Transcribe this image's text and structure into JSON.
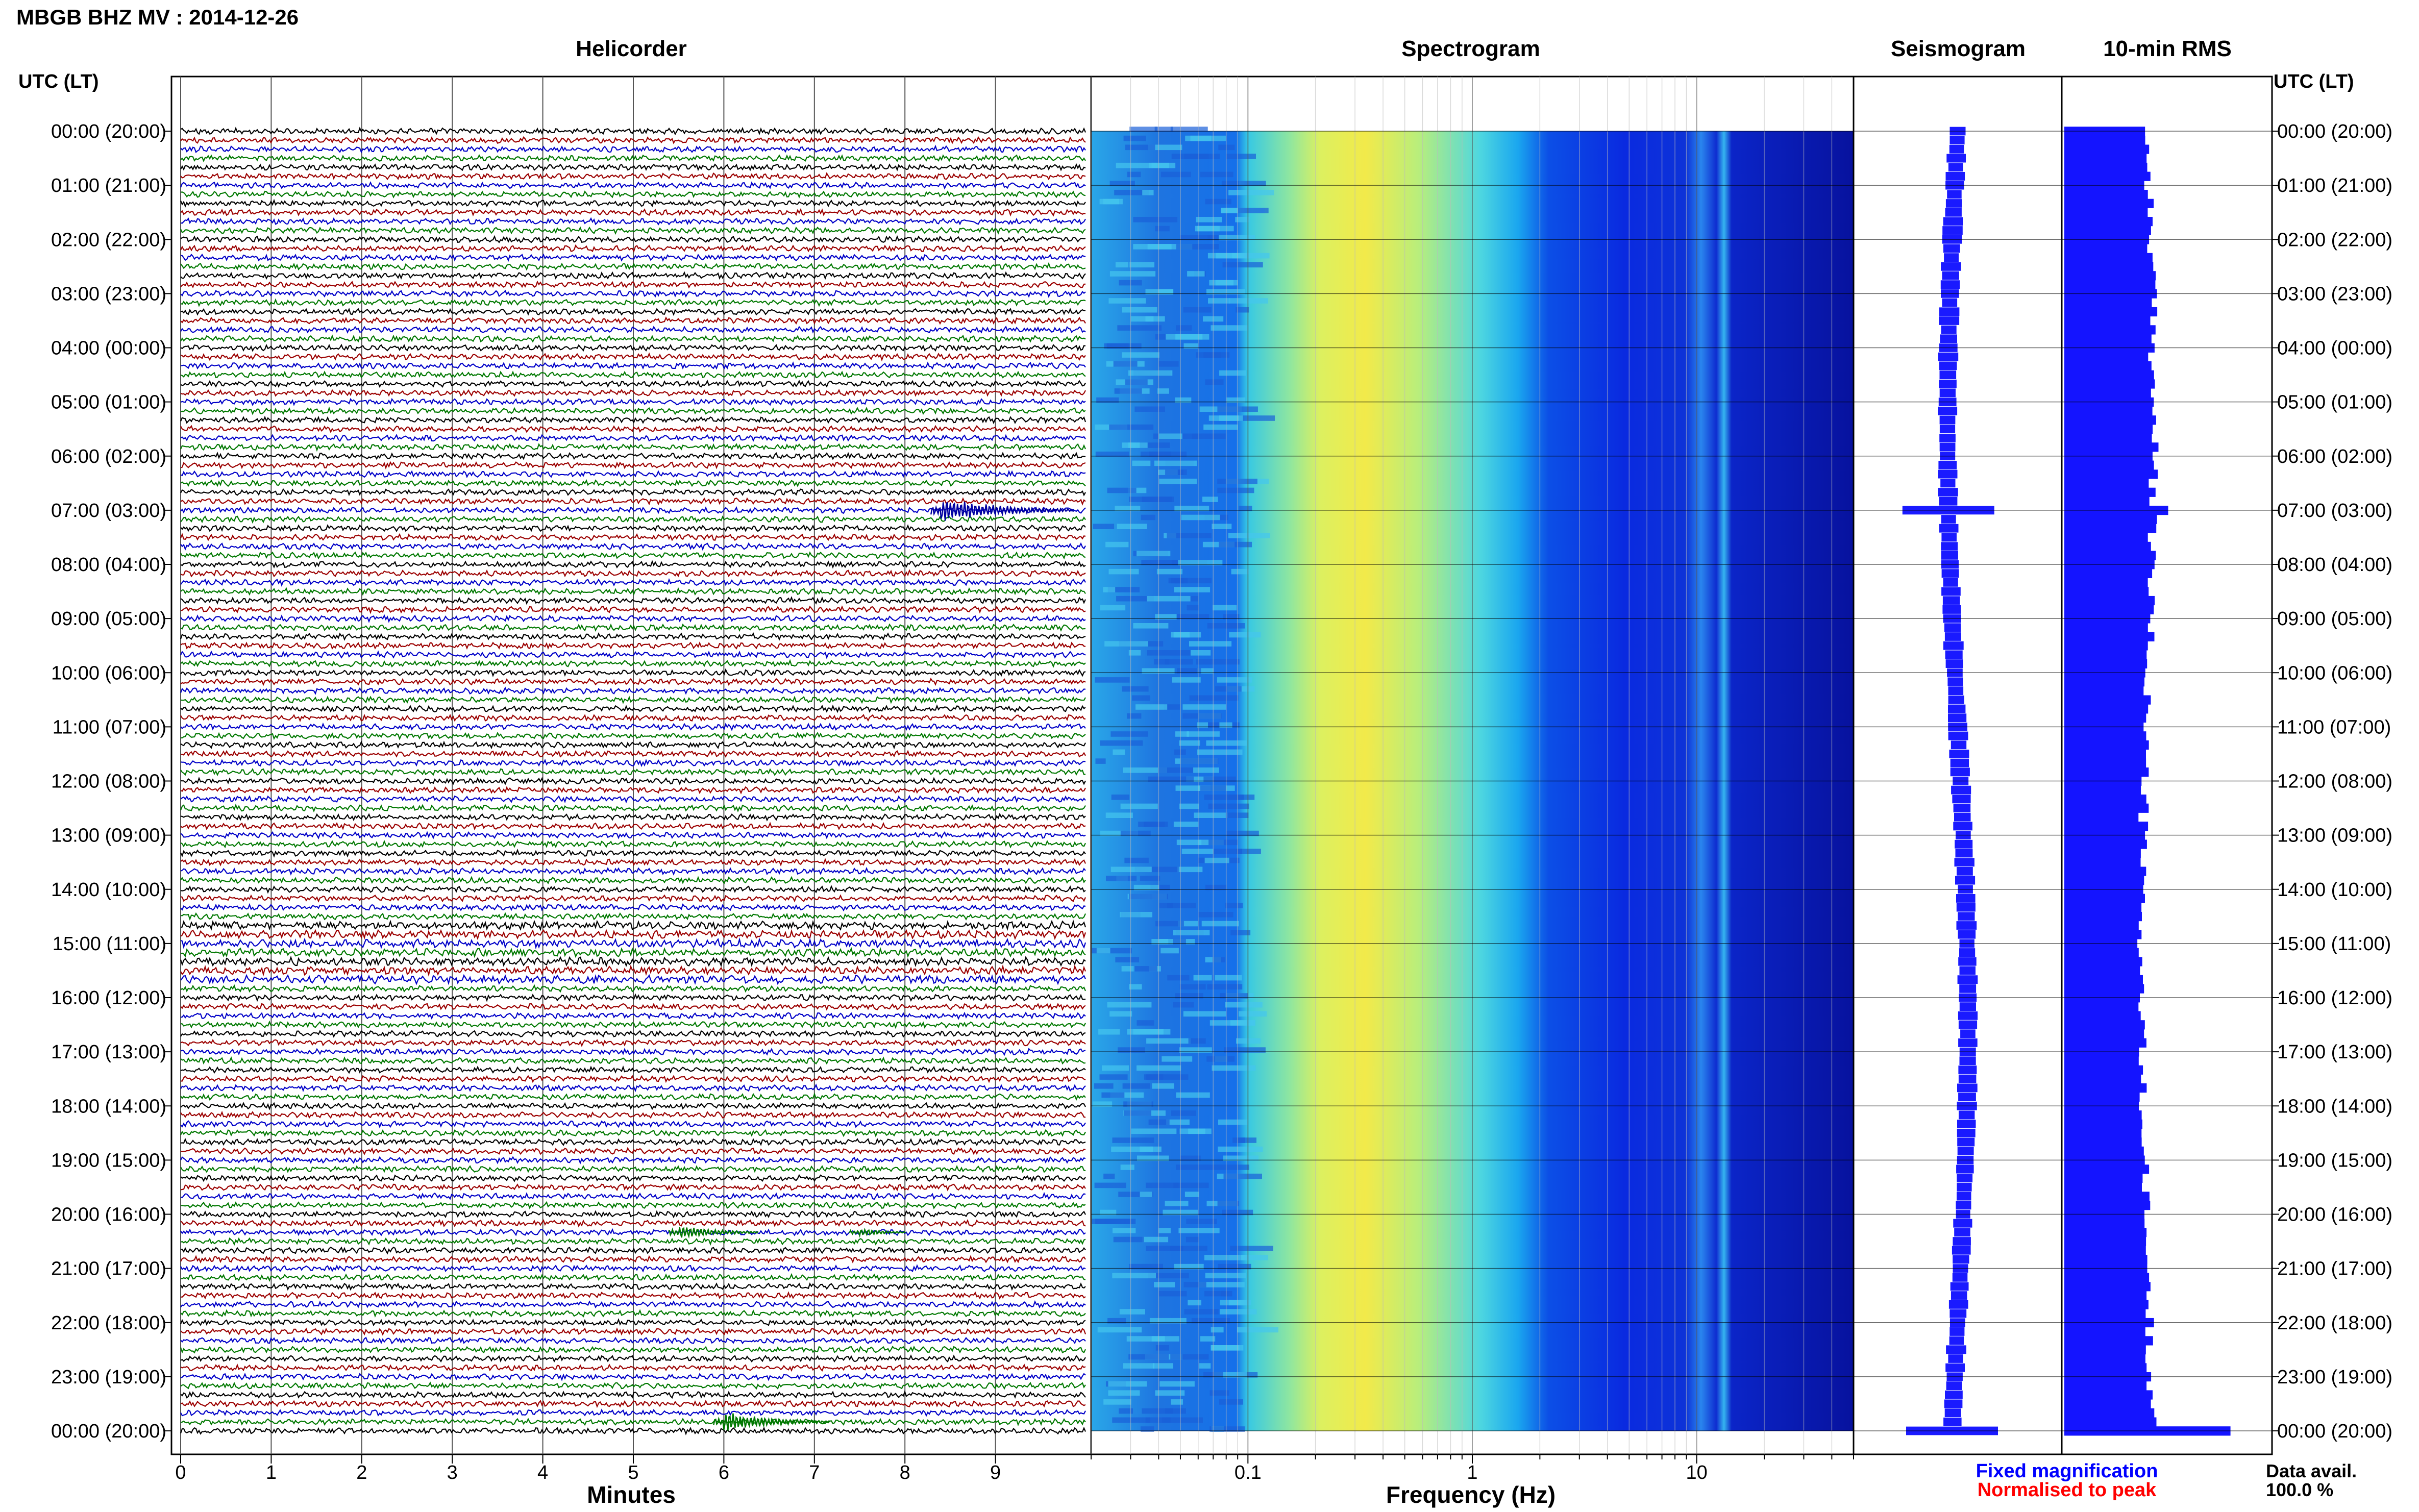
{
  "title": "MBGB BHZ MV : 2014-12-26",
  "panels": {
    "helicorder": "Helicorder",
    "spectrogram": "Spectrogram",
    "seismogram": "Seismogram",
    "rms": "10-min RMS"
  },
  "axis": {
    "time_header_left": "UTC (LT)",
    "time_header_right": "UTC (LT)",
    "minutes_label": "Minutes",
    "frequency_label": "Frequency (Hz)"
  },
  "legend": {
    "fixed": "Fixed magnification",
    "normalised": "Normalised to peak",
    "data_avail_label": "Data avail.",
    "data_avail_value": "100.0 %"
  },
  "colors": {
    "trace_cycle": [
      "#000000",
      "#9b0000",
      "#0000c8",
      "#007800"
    ],
    "seismogram": "#1a1aff",
    "rms": "#1414ff",
    "legend_fixed": "#0000ff",
    "legend_normalised": "#ff0000",
    "spectrogram_colormap": "jet"
  },
  "chart_data": [
    {
      "type": "line",
      "name": "helicorder",
      "title": "Helicorder",
      "xlabel": "Minutes",
      "x_ticks": [
        "0",
        "1",
        "2",
        "3",
        "4",
        "5",
        "6",
        "7",
        "8",
        "9"
      ],
      "xlim": [
        0,
        10
      ],
      "rows_per_hour": 6,
      "rows": 145,
      "y_ticks": [
        "00:00 (20:00)",
        "01:00 (21:00)",
        "02:00 (22:00)",
        "03:00 (23:00)",
        "04:00 (00:00)",
        "05:00 (01:00)",
        "06:00 (02:00)",
        "07:00 (03:00)",
        "08:00 (04:00)",
        "09:00 (05:00)",
        "10:00 (06:00)",
        "11:00 (07:00)",
        "12:00 (08:00)",
        "13:00 (09:00)",
        "14:00 (10:00)",
        "15:00 (11:00)",
        "16:00 (12:00)",
        "17:00 (13:00)",
        "18:00 (14:00)",
        "19:00 (15:00)",
        "20:00 (16:00)",
        "21:00 (17:00)",
        "22:00 (18:00)",
        "23:00 (19:00)",
        "00:00 (20:00)"
      ],
      "events": [
        {
          "row": 42,
          "minute": 8.4,
          "strength": 1.0
        },
        {
          "row": 122,
          "minute": 5.5,
          "strength": 0.6
        },
        {
          "row": 122,
          "minute": 7.5,
          "strength": 0.35
        },
        {
          "row": 143,
          "minute": 6.0,
          "strength": 0.8
        }
      ]
    },
    {
      "type": "heatmap",
      "name": "spectrogram",
      "title": "Spectrogram",
      "xlabel": "Frequency (Hz)",
      "x_scale": "log",
      "xlim": [
        0.02,
        50
      ],
      "x_ticks": [
        "0.1",
        "1",
        "10"
      ],
      "x_tick_values": [
        0.1,
        1,
        10
      ],
      "peak_frequency_hz": 0.3,
      "bright_band_hz": [
        10.5,
        12.5
      ]
    },
    {
      "type": "bar",
      "name": "seismogram",
      "title": "Seismogram",
      "description": "Daily amplitude envelope per 10-min row",
      "spike_rows": [
        42,
        144
      ]
    },
    {
      "type": "bar",
      "name": "rms",
      "title": "10-min RMS",
      "base_level": 0.4,
      "spike_rows": [
        {
          "row": 42,
          "value": 0.5
        },
        {
          "row": 144,
          "value": 0.8
        }
      ]
    }
  ]
}
